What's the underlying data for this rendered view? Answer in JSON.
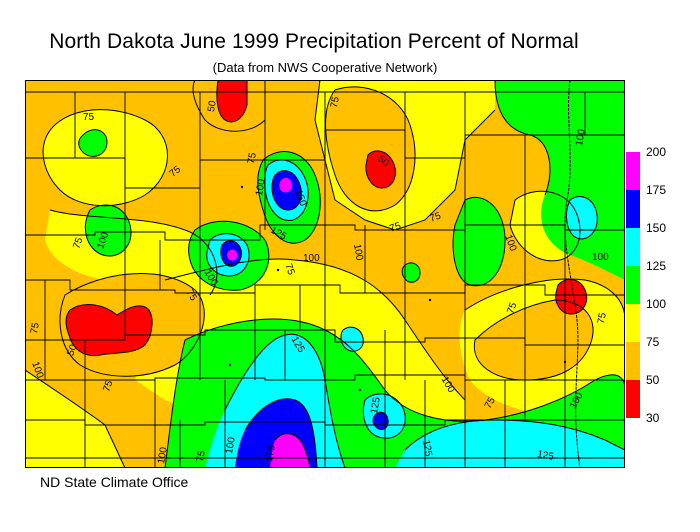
{
  "title": "North Dakota June 1999 Precipitation Percent of Normal",
  "subtitle": "(Data from NWS Cooperative Network)",
  "footer": "ND State Climate Office",
  "legend": {
    "labels": [
      "200",
      "175",
      "150",
      "125",
      "100",
      "75",
      "50",
      "30"
    ],
    "colors": [
      "#ff00ff",
      "#0000ff",
      "#00ffff",
      "#00ff00",
      "#ffff00",
      "#ffc000",
      "#ff0000"
    ]
  },
  "contour_labels": [
    "75",
    "50",
    "75",
    "75",
    "75",
    "50",
    "100",
    "75",
    "150",
    "75",
    "100",
    "75",
    "100",
    "125",
    "100",
    "75",
    "75",
    "100",
    "75",
    "100",
    "50",
    "75",
    "100",
    "125",
    "75",
    "75",
    "100",
    "100",
    "175",
    "125",
    "125",
    "125",
    "100",
    "100",
    "75",
    "100",
    "75",
    "100"
  ],
  "colors": {
    "c30": "#ff0000",
    "c50": "#ffc000",
    "c75": "#ffff00",
    "c100": "#00ff00",
    "c125": "#00ffff",
    "c150": "#0000ff",
    "c175": "#ff00ff"
  }
}
